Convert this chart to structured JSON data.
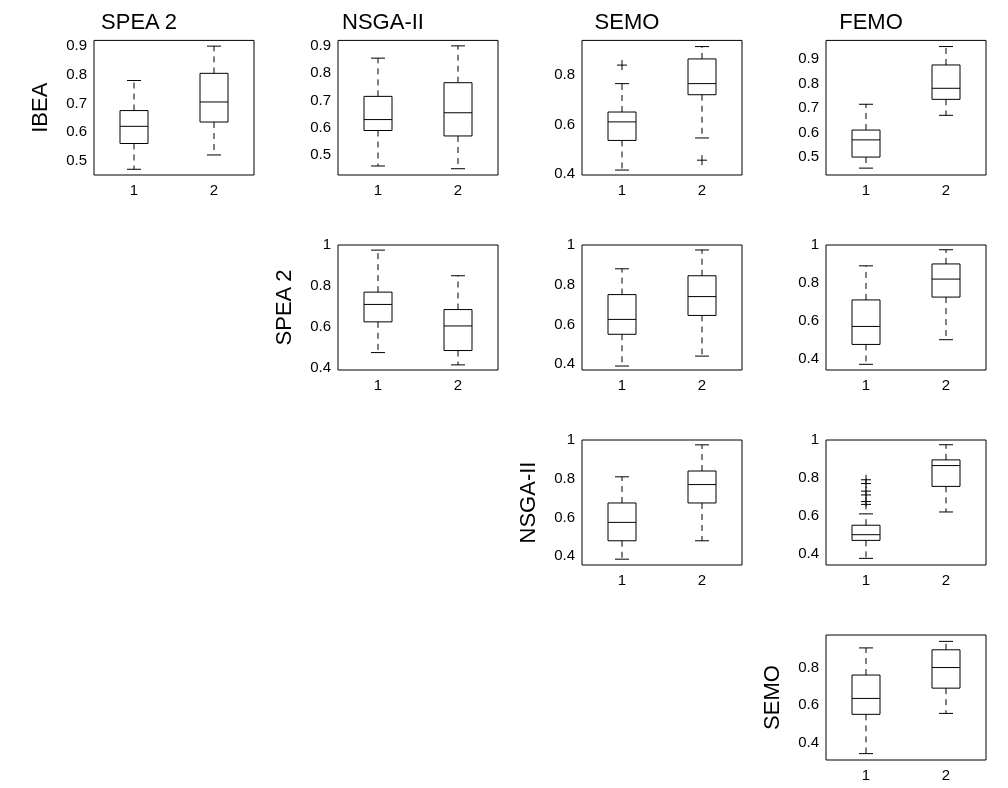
{
  "chart_data": [
    {
      "type": "box",
      "title": "SPEA 2",
      "ylabel": "IBEA",
      "categories": [
        "1",
        "2"
      ],
      "ylim": [
        0.45,
        0.92
      ],
      "yticks": [
        0.5,
        0.6,
        0.7,
        0.8,
        0.9
      ],
      "grid": false,
      "boxes": [
        {
          "low": 0.47,
          "q1": 0.56,
          "median": 0.62,
          "q3": 0.675,
          "high": 0.78
        },
        {
          "low": 0.52,
          "q1": 0.635,
          "median": 0.705,
          "q3": 0.805,
          "high": 0.9
        }
      ]
    },
    {
      "type": "box",
      "title": "NSGA-II",
      "categories": [
        "1",
        "2"
      ],
      "ylim": [
        0.427,
        0.92
      ],
      "yticks": [
        0.5,
        0.6,
        0.7,
        0.8,
        0.9
      ],
      "grid": false,
      "boxes": [
        {
          "low": 0.46,
          "q1": 0.59,
          "median": 0.63,
          "q3": 0.715,
          "high": 0.855
        },
        {
          "low": 0.45,
          "q1": 0.57,
          "median": 0.655,
          "q3": 0.765,
          "high": 0.9
        }
      ]
    },
    {
      "type": "box",
      "title": "SEMO",
      "categories": [
        "1",
        "2"
      ],
      "ylim": [
        0.395,
        0.94
      ],
      "yticks": [
        0.4,
        0.6,
        0.8
      ],
      "grid": false,
      "boxes": [
        {
          "low": 0.415,
          "q1": 0.535,
          "median": 0.61,
          "q3": 0.65,
          "high": 0.765,
          "outliers": [
            0.84
          ]
        },
        {
          "low": 0.545,
          "q1": 0.72,
          "median": 0.765,
          "q3": 0.865,
          "high": 0.915,
          "outliers": [
            0.455
          ]
        }
      ]
    },
    {
      "type": "box",
      "title": "FEMO",
      "categories": [
        "1",
        "2"
      ],
      "ylim": [
        0.427,
        0.975
      ],
      "yticks": [
        0.5,
        0.6,
        0.7,
        0.8,
        0.9
      ],
      "grid": false,
      "boxes": [
        {
          "low": 0.455,
          "q1": 0.5,
          "median": 0.57,
          "q3": 0.61,
          "high": 0.715
        },
        {
          "low": 0.67,
          "q1": 0.735,
          "median": 0.78,
          "q3": 0.875,
          "high": 0.95
        }
      ]
    },
    {
      "type": "box",
      "ylabel": "SPEA 2",
      "categories": [
        "1",
        "2"
      ],
      "ylim": [
        0.39,
        1
      ],
      "yticks": [
        0.4,
        0.6,
        0.8,
        1
      ],
      "grid": false,
      "boxes": [
        {
          "low": 0.475,
          "q1": 0.625,
          "median": 0.71,
          "q3": 0.77,
          "high": 0.975
        },
        {
          "low": 0.415,
          "q1": 0.485,
          "median": 0.605,
          "q3": 0.685,
          "high": 0.85
        }
      ]
    },
    {
      "type": "box",
      "categories": [
        "1",
        "2"
      ],
      "ylim": [
        0.37,
        1
      ],
      "yticks": [
        0.4,
        0.6,
        0.8,
        1
      ],
      "grid": false,
      "boxes": [
        {
          "low": 0.39,
          "q1": 0.55,
          "median": 0.625,
          "q3": 0.75,
          "high": 0.88
        },
        {
          "low": 0.44,
          "q1": 0.645,
          "median": 0.74,
          "q3": 0.845,
          "high": 0.975
        }
      ]
    },
    {
      "type": "box",
      "categories": [
        "1",
        "2"
      ],
      "ylim": [
        0.34,
        1
      ],
      "yticks": [
        0.4,
        0.6,
        0.8,
        1
      ],
      "grid": false,
      "boxes": [
        {
          "low": 0.37,
          "q1": 0.475,
          "median": 0.57,
          "q3": 0.71,
          "high": 0.89
        },
        {
          "low": 0.5,
          "q1": 0.725,
          "median": 0.82,
          "q3": 0.9,
          "high": 0.975
        }
      ]
    },
    {
      "type": "box",
      "ylabel": "NSGA-II",
      "categories": [
        "1",
        "2"
      ],
      "ylim": [
        0.355,
        1
      ],
      "yticks": [
        0.4,
        0.6,
        0.8,
        1
      ],
      "grid": false,
      "boxes": [
        {
          "low": 0.385,
          "q1": 0.48,
          "median": 0.575,
          "q3": 0.675,
          "high": 0.81
        },
        {
          "low": 0.48,
          "q1": 0.675,
          "median": 0.77,
          "q3": 0.84,
          "high": 0.975
        }
      ]
    },
    {
      "type": "box",
      "categories": [
        "1",
        "2"
      ],
      "ylim": [
        0.34,
        1
      ],
      "yticks": [
        0.4,
        0.6,
        0.8,
        1
      ],
      "grid": false,
      "boxes": [
        {
          "low": 0.375,
          "q1": 0.47,
          "median": 0.5,
          "q3": 0.55,
          "high": 0.61,
          "outliers": [
            0.66,
            0.675,
            0.71,
            0.73,
            0.77,
            0.79
          ]
        },
        {
          "low": 0.62,
          "q1": 0.755,
          "median": 0.865,
          "q3": 0.895,
          "high": 0.975
        }
      ]
    },
    {
      "type": "box",
      "ylabel": "SEMO",
      "categories": [
        "1",
        "2"
      ],
      "ylim": [
        0.306,
        0.974
      ],
      "yticks": [
        0.4,
        0.6,
        0.8
      ],
      "grid": false,
      "boxes": [
        {
          "low": 0.34,
          "q1": 0.55,
          "median": 0.635,
          "q3": 0.76,
          "high": 0.905
        },
        {
          "low": 0.555,
          "q1": 0.69,
          "median": 0.8,
          "q3": 0.895,
          "high": 0.94
        }
      ]
    }
  ]
}
